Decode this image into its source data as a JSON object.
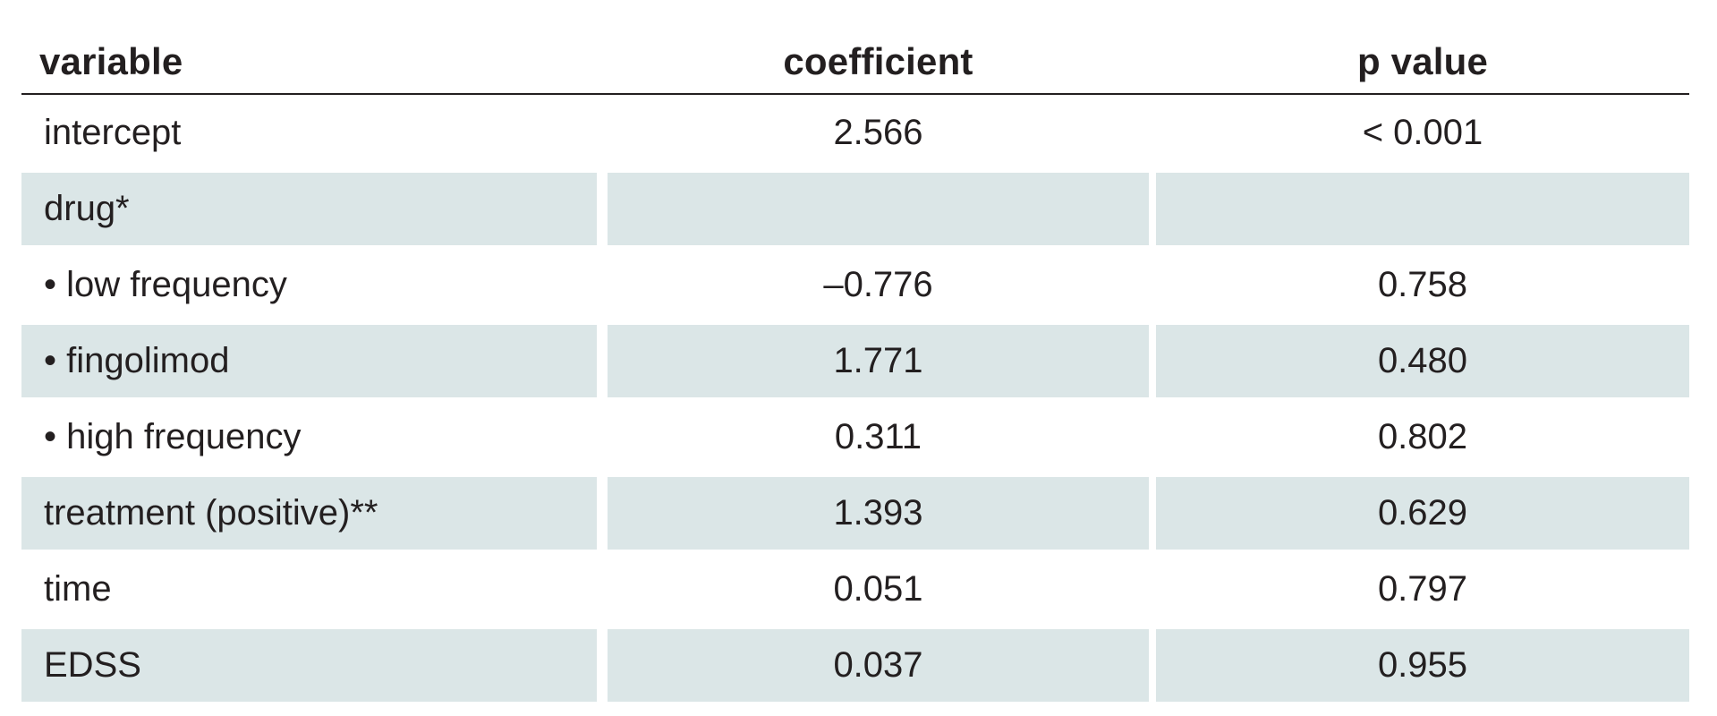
{
  "headers": {
    "variable": "variable",
    "coefficient": "coefficient",
    "p_value": "p value"
  },
  "rows": [
    {
      "variable": "intercept",
      "coefficient": "2.566",
      "p_value": "< 0.001",
      "shaded": false
    },
    {
      "variable": "drug*",
      "coefficient": "",
      "p_value": "",
      "shaded": true
    },
    {
      "variable": "• low frequency",
      "coefficient": "–0.776",
      "p_value": "0.758",
      "shaded": false
    },
    {
      "variable": "• fingolimod",
      "coefficient": "1.771",
      "p_value": "0.480",
      "shaded": true
    },
    {
      "variable": "• high frequency",
      "coefficient": "0.311",
      "p_value": "0.802",
      "shaded": false
    },
    {
      "variable": "treatment (positive)**",
      "coefficient": "1.393",
      "p_value": "0.629",
      "shaded": true
    },
    {
      "variable": "time",
      "coefficient": "0.051",
      "p_value": "0.797",
      "shaded": false
    },
    {
      "variable": "EDSS",
      "coefficient": "0.037",
      "p_value": "0.955",
      "shaded": true
    }
  ],
  "colors": {
    "shade": "#dbe6e7",
    "text": "#231f20"
  }
}
